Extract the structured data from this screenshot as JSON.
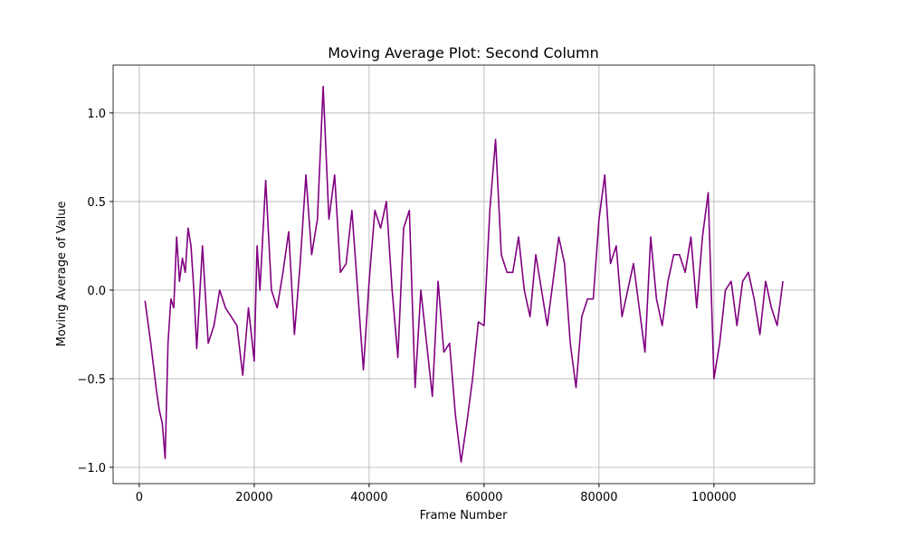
{
  "chart_data": {
    "type": "line",
    "title": "Moving Average Plot: Second Column",
    "xlabel": "Frame Number",
    "ylabel": "Moving Average of Value",
    "x": [
      1000,
      2000,
      3000,
      3500,
      4000,
      4500,
      5000,
      5500,
      6000,
      6500,
      7000,
      7500,
      8000,
      8500,
      9000,
      9500,
      10000,
      11000,
      12000,
      13000,
      14000,
      15000,
      16000,
      17000,
      18000,
      19000,
      20000,
      20500,
      21000,
      22000,
      23000,
      24000,
      25000,
      26000,
      27000,
      28000,
      29000,
      30000,
      31000,
      32000,
      33000,
      34000,
      35000,
      36000,
      37000,
      38000,
      39000,
      40000,
      41000,
      42000,
      43000,
      44000,
      45000,
      46000,
      47000,
      48000,
      49000,
      50000,
      51000,
      52000,
      53000,
      54000,
      55000,
      56000,
      57000,
      58000,
      59000,
      60000,
      61000,
      62000,
      63000,
      64000,
      65000,
      66000,
      67000,
      68000,
      69000,
      70000,
      71000,
      72000,
      73000,
      74000,
      75000,
      76000,
      77000,
      78000,
      79000,
      80000,
      81000,
      82000,
      83000,
      84000,
      85000,
      86000,
      87000,
      88000,
      89000,
      90000,
      91000,
      92000,
      93000,
      94000,
      95000,
      96000,
      97000,
      98000,
      99000,
      100000,
      101000,
      102000,
      103000,
      104000,
      105000,
      106000,
      107000,
      108000,
      109000,
      110000,
      111000,
      112000
    ],
    "series": [
      {
        "name": "Moving Average",
        "color": "#800080",
        "values": [
          -0.06,
          -0.3,
          -0.57,
          -0.68,
          -0.75,
          -0.95,
          -0.3,
          -0.05,
          -0.1,
          0.3,
          0.05,
          0.18,
          0.1,
          0.35,
          0.25,
          0.0,
          -0.33,
          0.25,
          -0.3,
          -0.2,
          0.0,
          -0.1,
          -0.15,
          -0.2,
          -0.48,
          -0.1,
          -0.4,
          0.25,
          0.0,
          0.62,
          0.0,
          -0.1,
          0.1,
          0.33,
          -0.25,
          0.15,
          0.65,
          0.2,
          0.4,
          1.15,
          0.4,
          0.65,
          0.1,
          0.15,
          0.45,
          0.0,
          -0.45,
          0.05,
          0.45,
          0.35,
          0.5,
          0.0,
          -0.38,
          0.35,
          0.45,
          -0.55,
          0.0,
          -0.3,
          -0.6,
          0.05,
          -0.35,
          -0.3,
          -0.7,
          -0.97,
          -0.75,
          -0.5,
          -0.18,
          -0.2,
          0.45,
          0.85,
          0.2,
          0.1,
          0.1,
          0.3,
          0.0,
          -0.15,
          0.2,
          0.0,
          -0.2,
          0.05,
          0.3,
          0.15,
          -0.3,
          -0.55,
          -0.15,
          -0.05,
          -0.05,
          0.4,
          0.65,
          0.15,
          0.25,
          -0.15,
          0.0,
          0.15,
          -0.1,
          -0.35,
          0.3,
          -0.05,
          -0.2,
          0.05,
          0.2,
          0.2,
          0.1,
          0.3,
          -0.1,
          0.3,
          0.55,
          -0.5,
          -0.3,
          0.0,
          0.05,
          -0.2,
          0.05,
          0.1,
          -0.05,
          -0.25,
          0.05,
          -0.1,
          -0.2,
          0.05
        ]
      }
    ],
    "xlim": [
      -4550,
      117500
    ],
    "ylim": [
      -1.092,
      1.27
    ],
    "xticks": [
      0,
      20000,
      40000,
      60000,
      80000,
      100000
    ],
    "yticks": [
      {
        "value": -1,
        "label": "−1.0"
      },
      {
        "value": -0.5,
        "label": "−0.5"
      },
      {
        "value": 0,
        "label": "0.0"
      },
      {
        "value": 0.5,
        "label": "0.5"
      },
      {
        "value": 1,
        "label": "1.0"
      }
    ],
    "grid": true
  }
}
